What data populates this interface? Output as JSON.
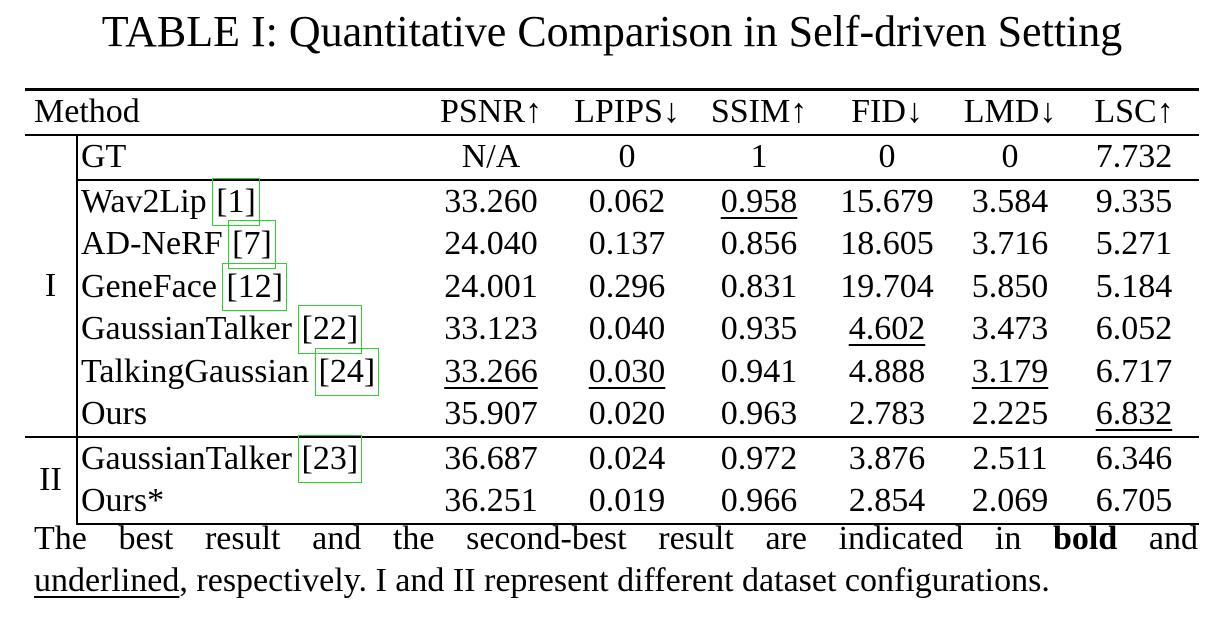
{
  "caption": "TABLE I: Quantitative Comparison in Self-driven Setting",
  "header": {
    "method": "Method",
    "psnr": "PSNR↑",
    "lpips": "LPIPS↓",
    "ssim": "SSIM↑",
    "fid": "FID↓",
    "lmd": "LMD↓",
    "lsc": "LSC↑"
  },
  "group1": {
    "label": "I",
    "gt": {
      "method": "GT",
      "psnr": "N/A",
      "lpips": "0",
      "ssim": "1",
      "fid": "0",
      "lmd": "0",
      "lsc": "7.732"
    },
    "rows": [
      {
        "method": "Wav2Lip ",
        "cite": "[1]",
        "psnr": "33.260",
        "lpips": "0.062",
        "ssim": "0.958",
        "fid": "15.679",
        "lmd": "3.584",
        "lsc": "9.335"
      },
      {
        "method": "AD-NeRF ",
        "cite": "[7]",
        "psnr": "24.040",
        "lpips": "0.137",
        "ssim": "0.856",
        "fid": "18.605",
        "lmd": "3.716",
        "lsc": "5.271"
      },
      {
        "method": "GeneFace ",
        "cite": "[12]",
        "psnr": "24.001",
        "lpips": "0.296",
        "ssim": "0.831",
        "fid": "19.704",
        "lmd": "5.850",
        "lsc": "5.184"
      },
      {
        "method": "GaussianTalker ",
        "cite": "[22]",
        "psnr": "33.123",
        "lpips": "0.040",
        "ssim": "0.935",
        "fid": "4.602",
        "lmd": "3.473",
        "lsc": "6.052"
      },
      {
        "method": "TalkingGaussian ",
        "cite": "[24]",
        "psnr": "33.266",
        "lpips": "0.030",
        "ssim": "0.941",
        "fid": "4.888",
        "lmd": "3.179",
        "lsc": "6.717"
      },
      {
        "method": "Ours",
        "cite": "",
        "psnr": "35.907",
        "lpips": "0.020",
        "ssim": "0.963",
        "fid": "2.783",
        "lmd": "2.225",
        "lsc": "6.832"
      }
    ]
  },
  "group2": {
    "label": "II",
    "rows": [
      {
        "method": "GaussianTalker ",
        "cite": "[23]",
        "psnr": "36.687",
        "lpips": "0.024",
        "ssim": "0.972",
        "fid": "3.876",
        "lmd": "2.511",
        "lsc": "6.346"
      },
      {
        "method": "Ours*",
        "cite": "",
        "psnr": "36.251",
        "lpips": "0.019",
        "ssim": "0.966",
        "fid": "2.854",
        "lmd": "2.069",
        "lsc": "6.705"
      }
    ]
  },
  "footnote": {
    "part1": "The best result and the second-best result are indicated in ",
    "bold_word": "bold",
    "part2": " and",
    "underline_word": "underlined",
    "part3": ", respectively. I and II represent different dataset configurations."
  }
}
